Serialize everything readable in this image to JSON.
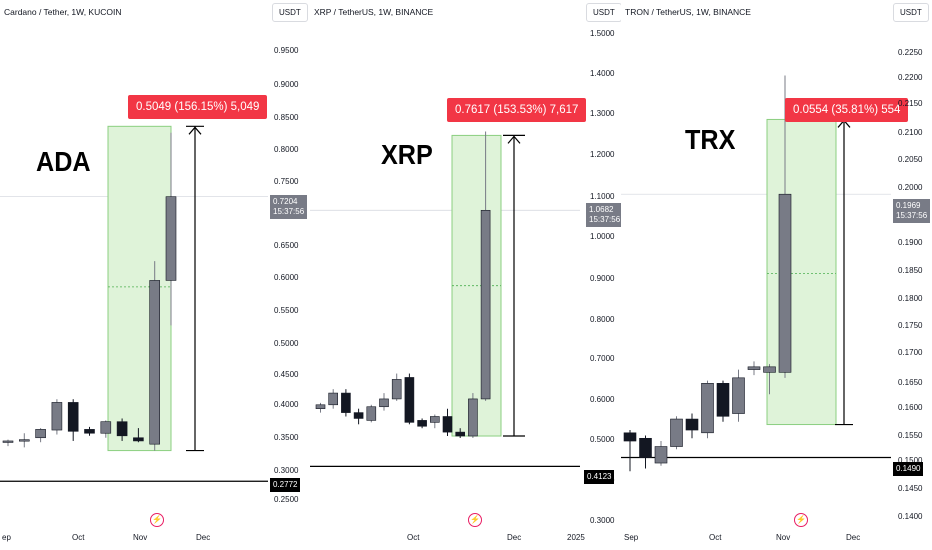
{
  "panels": [
    {
      "id": "ada",
      "title": "Cardano / Tether, 1W, KUCOIN",
      "currency_button": "USDT",
      "overlay_label": "ADA",
      "measure_badge": "0.5049 (156.15%) 5,049",
      "price_scale": [
        "0.9500",
        "0.9000",
        "0.8500",
        "0.8000",
        "0.7500",
        "0.7000",
        "0.6500",
        "0.6000",
        "0.5500",
        "0.5000",
        "0.4500",
        "0.4000",
        "0.3500",
        "0.3000",
        "0.2500"
      ],
      "current_price": "0.7204",
      "countdown": "15:37:56",
      "line_price": "0.2772",
      "time_axis": [
        "ep",
        "Oct",
        "Nov",
        "Dec"
      ],
      "scale": {
        "min": 0.22,
        "max": 0.98
      },
      "candles": [
        {
          "o": 0.338,
          "h": 0.342,
          "l": 0.332,
          "c": 0.34
        },
        {
          "o": 0.34,
          "h": 0.352,
          "l": 0.33,
          "c": 0.342
        },
        {
          "o": 0.345,
          "h": 0.36,
          "l": 0.338,
          "c": 0.358
        },
        {
          "o": 0.357,
          "h": 0.405,
          "l": 0.35,
          "c": 0.4
        },
        {
          "o": 0.4,
          "h": 0.405,
          "l": 0.34,
          "c": 0.355
        },
        {
          "o": 0.358,
          "h": 0.362,
          "l": 0.348,
          "c": 0.352
        },
        {
          "o": 0.352,
          "h": 0.372,
          "l": 0.345,
          "c": 0.37
        },
        {
          "o": 0.37,
          "h": 0.375,
          "l": 0.34,
          "c": 0.348
        },
        {
          "o": 0.345,
          "h": 0.36,
          "l": 0.338,
          "c": 0.34
        },
        {
          "o": 0.335,
          "h": 0.62,
          "l": 0.325,
          "c": 0.59
        },
        {
          "o": 0.59,
          "h": 0.82,
          "l": 0.52,
          "c": 0.7204
        }
      ],
      "measure": {
        "from": 0.325,
        "to": 0.83,
        "mid": 0.58
      }
    },
    {
      "id": "xrp",
      "title": "XRP / TetherUS, 1W, BINANCE",
      "currency_button": "USDT",
      "overlay_label": "XRP",
      "measure_badge": "0.7617 (153.53%) 7,617",
      "price_scale": [
        "1.5000",
        "1.4000",
        "1.3000",
        "1.2000",
        "1.1000",
        "1.0000",
        "0.9000",
        "0.8000",
        "0.7000",
        "0.6000",
        "0.5000",
        "0.4000",
        "0.3000"
      ],
      "current_price": "1.0682",
      "countdown": "15:37:56",
      "line_price": "0.4123",
      "time_axis": [
        "Oct",
        "Dec",
        "2025"
      ],
      "scale": {
        "min": 0.28,
        "max": 1.53
      },
      "candles": [
        {
          "o": 0.56,
          "h": 0.575,
          "l": 0.55,
          "c": 0.57
        },
        {
          "o": 0.57,
          "h": 0.61,
          "l": 0.56,
          "c": 0.6
        },
        {
          "o": 0.6,
          "h": 0.61,
          "l": 0.54,
          "c": 0.55
        },
        {
          "o": 0.55,
          "h": 0.56,
          "l": 0.52,
          "c": 0.535
        },
        {
          "o": 0.53,
          "h": 0.57,
          "l": 0.525,
          "c": 0.565
        },
        {
          "o": 0.565,
          "h": 0.6,
          "l": 0.555,
          "c": 0.585
        },
        {
          "o": 0.585,
          "h": 0.65,
          "l": 0.58,
          "c": 0.635
        },
        {
          "o": 0.64,
          "h": 0.65,
          "l": 0.52,
          "c": 0.525
        },
        {
          "o": 0.53,
          "h": 0.535,
          "l": 0.51,
          "c": 0.515
        },
        {
          "o": 0.525,
          "h": 0.545,
          "l": 0.51,
          "c": 0.54
        },
        {
          "o": 0.54,
          "h": 0.56,
          "l": 0.49,
          "c": 0.5
        },
        {
          "o": 0.5,
          "h": 0.51,
          "l": 0.485,
          "c": 0.49
        },
        {
          "o": 0.49,
          "h": 0.6,
          "l": 0.485,
          "c": 0.585
        },
        {
          "o": 0.585,
          "h": 1.27,
          "l": 0.58,
          "c": 1.0682
        }
      ],
      "measure": {
        "from": 0.49,
        "to": 1.26,
        "mid": 0.875
      }
    },
    {
      "id": "trx",
      "title": "TRON / TetherUS, 1W, BINANCE",
      "currency_button": "USDT",
      "overlay_label": "TRX",
      "measure_badge": "0.0554 (35.81%) 554",
      "price_scale": [
        "0.2250",
        "0.2200",
        "0.2150",
        "0.2100",
        "0.2050",
        "0.2000",
        "0.1950",
        "0.1900",
        "0.1850",
        "0.1800",
        "0.1750",
        "0.1700",
        "0.1650",
        "0.1600",
        "0.1550",
        "0.1500",
        "0.1450",
        "0.1400"
      ],
      "current_price": "0.1969",
      "countdown": "15:37:56",
      "line_price": "0.1490",
      "time_axis": [
        "Sep",
        "Oct",
        "Nov",
        "Dec"
      ],
      "scale": {
        "min": 0.138,
        "max": 0.2295
      },
      "candles": [
        {
          "o": 0.1535,
          "h": 0.154,
          "l": 0.1465,
          "c": 0.152
        },
        {
          "o": 0.1525,
          "h": 0.153,
          "l": 0.147,
          "c": 0.149
        },
        {
          "o": 0.148,
          "h": 0.152,
          "l": 0.1475,
          "c": 0.151
        },
        {
          "o": 0.151,
          "h": 0.1565,
          "l": 0.1505,
          "c": 0.156
        },
        {
          "o": 0.156,
          "h": 0.157,
          "l": 0.1525,
          "c": 0.154
        },
        {
          "o": 0.1535,
          "h": 0.163,
          "l": 0.1525,
          "c": 0.1625
        },
        {
          "o": 0.1625,
          "h": 0.163,
          "l": 0.1555,
          "c": 0.1565
        },
        {
          "o": 0.157,
          "h": 0.165,
          "l": 0.1555,
          "c": 0.1635
        },
        {
          "o": 0.165,
          "h": 0.1665,
          "l": 0.164,
          "c": 0.1655
        },
        {
          "o": 0.1645,
          "h": 0.166,
          "l": 0.1605,
          "c": 0.1655
        },
        {
          "o": 0.1645,
          "h": 0.2185,
          "l": 0.1635,
          "c": 0.1969
        }
      ],
      "measure": {
        "from": 0.155,
        "to": 0.2105,
        "mid": 0.1825
      }
    }
  ],
  "colors": {
    "bull": "#787b86",
    "bear": "#131722",
    "measure_fill": "#dff3d9",
    "measure_border": "#8bcf80",
    "badge": "#f23645",
    "wick": "#555a66",
    "accent_bolt": "#e91e63"
  }
}
